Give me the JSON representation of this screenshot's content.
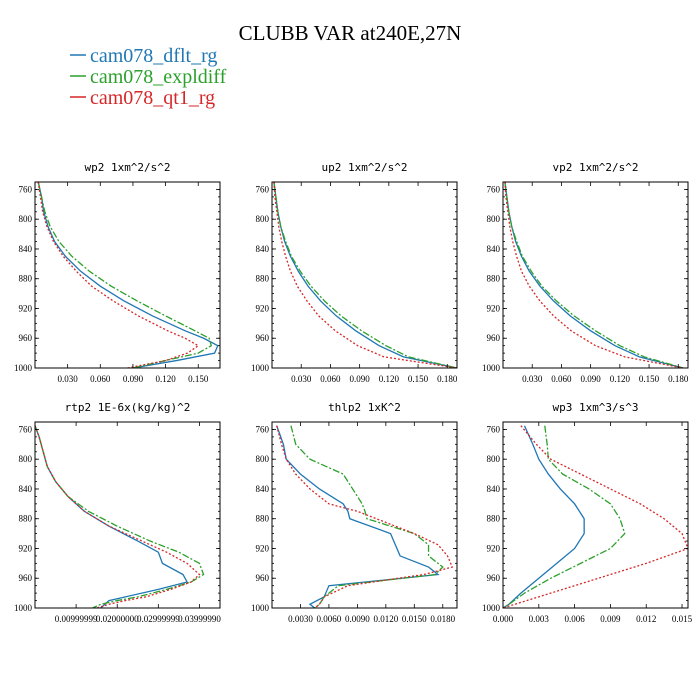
{
  "figure": {
    "title": "CLUBB VAR at240E,27N",
    "legend": [
      {
        "name": "cam078_dflt_rg",
        "color": "#1f77b4"
      },
      {
        "name": "cam078_expldiff",
        "color": "#2ca02c"
      },
      {
        "name": "cam078_qt1_rg",
        "color": "#d62728"
      }
    ]
  },
  "chart_data": [
    {
      "type": "line",
      "title": "wp2  1xm^2/s^2",
      "ylim": [
        1000,
        750
      ],
      "yticks": [
        760,
        800,
        840,
        880,
        920,
        960,
        1000
      ],
      "xlim": [
        0,
        0.17
      ],
      "xticks": [
        0.03,
        0.06,
        0.09,
        0.12,
        0.15
      ],
      "xtick_labels": [
        "0.030",
        "0.060",
        "0.090",
        "0.120",
        "0.150"
      ],
      "y": [
        750,
        770,
        790,
        810,
        830,
        850,
        870,
        890,
        910,
        930,
        950,
        960,
        970,
        980,
        990,
        1000
      ],
      "series": [
        {
          "name": "cam078_dflt_rg",
          "x": [
            0.003,
            0.006,
            0.008,
            0.012,
            0.018,
            0.028,
            0.042,
            0.06,
            0.082,
            0.108,
            0.138,
            0.155,
            0.168,
            0.165,
            0.13,
            0.09
          ]
        },
        {
          "name": "cam078_expldiff",
          "x": [
            0.003,
            0.006,
            0.009,
            0.014,
            0.022,
            0.034,
            0.05,
            0.07,
            0.094,
            0.12,
            0.147,
            0.16,
            0.162,
            0.15,
            0.12,
            0.09
          ]
        },
        {
          "name": "cam078_qt1_rg",
          "x": [
            0.003,
            0.005,
            0.007,
            0.011,
            0.017,
            0.026,
            0.038,
            0.052,
            0.072,
            0.095,
            0.122,
            0.138,
            0.15,
            0.14,
            0.12,
            0.085
          ]
        }
      ]
    },
    {
      "type": "line",
      "title": "up2  1xm^2/s^2",
      "ylim": [
        1000,
        750
      ],
      "yticks": [
        760,
        800,
        840,
        880,
        920,
        960,
        1000
      ],
      "xlim": [
        0,
        0.19
      ],
      "xticks": [
        0.03,
        0.06,
        0.09,
        0.12,
        0.15,
        0.18
      ],
      "xtick_labels": [
        "0.030",
        "0.060",
        "0.090",
        "0.120",
        "0.150",
        "0.180"
      ],
      "y": [
        750,
        770,
        790,
        810,
        830,
        850,
        870,
        890,
        910,
        930,
        950,
        970,
        985,
        1000
      ],
      "series": [
        {
          "name": "cam078_dflt_rg",
          "x": [
            0.002,
            0.004,
            0.006,
            0.009,
            0.013,
            0.019,
            0.027,
            0.037,
            0.05,
            0.066,
            0.086,
            0.11,
            0.135,
            0.19
          ]
        },
        {
          "name": "cam078_expldiff",
          "x": [
            0.002,
            0.004,
            0.006,
            0.009,
            0.014,
            0.02,
            0.029,
            0.04,
            0.054,
            0.071,
            0.092,
            0.117,
            0.14,
            0.19
          ]
        },
        {
          "name": "cam078_qt1_rg",
          "x": [
            0.002,
            0.003,
            0.005,
            0.007,
            0.01,
            0.014,
            0.019,
            0.026,
            0.036,
            0.048,
            0.065,
            0.088,
            0.115,
            0.19
          ]
        }
      ]
    },
    {
      "type": "line",
      "title": "vp2  1xm^2/s^2",
      "ylim": [
        1000,
        750
      ],
      "yticks": [
        760,
        800,
        840,
        880,
        920,
        960,
        1000
      ],
      "xlim": [
        0,
        0.19
      ],
      "xticks": [
        0.03,
        0.06,
        0.09,
        0.12,
        0.15,
        0.18
      ],
      "xtick_labels": [
        "0.030",
        "0.060",
        "0.090",
        "0.120",
        "0.150",
        "0.180"
      ],
      "y": [
        750,
        770,
        790,
        810,
        830,
        850,
        870,
        890,
        910,
        930,
        950,
        970,
        985,
        1000
      ],
      "series": [
        {
          "name": "cam078_dflt_rg",
          "x": [
            0.002,
            0.004,
            0.006,
            0.009,
            0.013,
            0.019,
            0.027,
            0.038,
            0.052,
            0.069,
            0.09,
            0.115,
            0.14,
            0.185
          ]
        },
        {
          "name": "cam078_expldiff",
          "x": [
            0.002,
            0.004,
            0.006,
            0.009,
            0.014,
            0.02,
            0.029,
            0.04,
            0.055,
            0.073,
            0.095,
            0.12,
            0.145,
            0.185
          ]
        },
        {
          "name": "cam078_qt1_rg",
          "x": [
            0.002,
            0.003,
            0.005,
            0.007,
            0.01,
            0.014,
            0.019,
            0.027,
            0.038,
            0.052,
            0.07,
            0.095,
            0.125,
            0.185
          ]
        }
      ]
    },
    {
      "type": "line",
      "title": "rtp2  1E-6x(kg/kg)^2",
      "ylim": [
        1000,
        750
      ],
      "yticks": [
        760,
        800,
        840,
        880,
        920,
        960,
        1000
      ],
      "xlim": [
        0,
        0.045
      ],
      "xticks": [
        0.01,
        0.02,
        0.03,
        0.04
      ],
      "xtick_labels": [
        "0.00999999",
        "0.02000000",
        "0.02999999",
        "0.03999990"
      ],
      "y": [
        755,
        770,
        790,
        810,
        830,
        850,
        870,
        890,
        910,
        925,
        940,
        955,
        965,
        975,
        985,
        990,
        995,
        1000
      ],
      "series": [
        {
          "name": "cam078_dflt_rg",
          "x": [
            0.0,
            0.001,
            0.002,
            0.003,
            0.005,
            0.008,
            0.012,
            0.018,
            0.025,
            0.03,
            0.031,
            0.036,
            0.037,
            0.03,
            0.022,
            0.018,
            0.017,
            0.016
          ]
        },
        {
          "name": "cam078_expldiff",
          "x": [
            0.0,
            0.001,
            0.002,
            0.003,
            0.005,
            0.008,
            0.013,
            0.02,
            0.028,
            0.035,
            0.04,
            0.041,
            0.038,
            0.032,
            0.025,
            0.02,
            0.016,
            0.014
          ]
        },
        {
          "name": "cam078_qt1_rg",
          "x": [
            0.0,
            0.001,
            0.002,
            0.003,
            0.005,
            0.008,
            0.012,
            0.018,
            0.026,
            0.032,
            0.037,
            0.04,
            0.038,
            0.033,
            0.027,
            0.022,
            0.018,
            0.015
          ]
        }
      ]
    },
    {
      "type": "line",
      "title": "thlp2  1xK^2",
      "ylim": [
        1000,
        750
      ],
      "yticks": [
        760,
        800,
        840,
        880,
        920,
        960,
        1000
      ],
      "xlim": [
        0,
        0.0195
      ],
      "xticks": [
        0.003,
        0.006,
        0.009,
        0.012,
        0.015,
        0.018
      ],
      "xtick_labels": [
        "0.0030",
        "0.0060",
        "0.0090",
        "0.0120",
        "0.0150",
        "0.0180"
      ],
      "y": [
        755,
        780,
        800,
        820,
        840,
        860,
        870,
        880,
        900,
        915,
        930,
        945,
        955,
        970,
        985,
        995,
        1000
      ],
      "series": [
        {
          "name": "cam078_dflt_rg",
          "x": [
            0.0005,
            0.0012,
            0.0015,
            0.003,
            0.005,
            0.0075,
            0.008,
            0.0082,
            0.0125,
            0.013,
            0.0135,
            0.0165,
            0.0175,
            0.006,
            0.0055,
            0.004,
            0.0045
          ]
        },
        {
          "name": "cam078_expldiff",
          "x": [
            0.002,
            0.0025,
            0.004,
            0.0075,
            0.0085,
            0.0095,
            0.0098,
            0.01,
            0.015,
            0.0165,
            0.0165,
            0.018,
            0.0172,
            0.007,
            0.0055,
            0.005,
            0.0045
          ]
        },
        {
          "name": "cam078_qt1_rg",
          "x": [
            0.0005,
            0.001,
            0.0015,
            0.0025,
            0.004,
            0.006,
            0.009,
            0.011,
            0.015,
            0.0175,
            0.0185,
            0.019,
            0.016,
            0.008,
            0.0055,
            0.005,
            0.0045
          ]
        }
      ]
    },
    {
      "type": "line",
      "title": "wp3  1xm^3/s^3",
      "ylim": [
        1000,
        750
      ],
      "yticks": [
        760,
        800,
        840,
        880,
        920,
        960,
        1000
      ],
      "xlim": [
        0,
        0.0155
      ],
      "xticks": [
        0.0,
        0.003,
        0.006,
        0.009,
        0.012,
        0.015
      ],
      "xtick_labels": [
        "0.000",
        "0.003",
        "0.006",
        "0.009",
        "0.012",
        "0.015"
      ],
      "y": [
        755,
        780,
        800,
        820,
        840,
        860,
        880,
        900,
        920,
        940,
        960,
        980,
        995,
        1000
      ],
      "series": [
        {
          "name": "cam078_dflt_rg",
          "x": [
            0.0018,
            0.0025,
            0.003,
            0.0038,
            0.0048,
            0.006,
            0.0068,
            0.0068,
            0.006,
            0.0045,
            0.003,
            0.0015,
            0.0005,
            0.0
          ]
        },
        {
          "name": "cam078_expldiff",
          "x": [
            0.0035,
            0.0037,
            0.0038,
            0.005,
            0.0072,
            0.009,
            0.0098,
            0.0102,
            0.009,
            0.0065,
            0.004,
            0.0018,
            0.0005,
            0.0
          ]
        },
        {
          "name": "cam078_qt1_rg",
          "x": [
            0.0015,
            0.0028,
            0.004,
            0.0065,
            0.009,
            0.0115,
            0.0135,
            0.015,
            0.0155,
            0.012,
            0.008,
            0.004,
            0.001,
            0.0
          ]
        }
      ]
    }
  ]
}
